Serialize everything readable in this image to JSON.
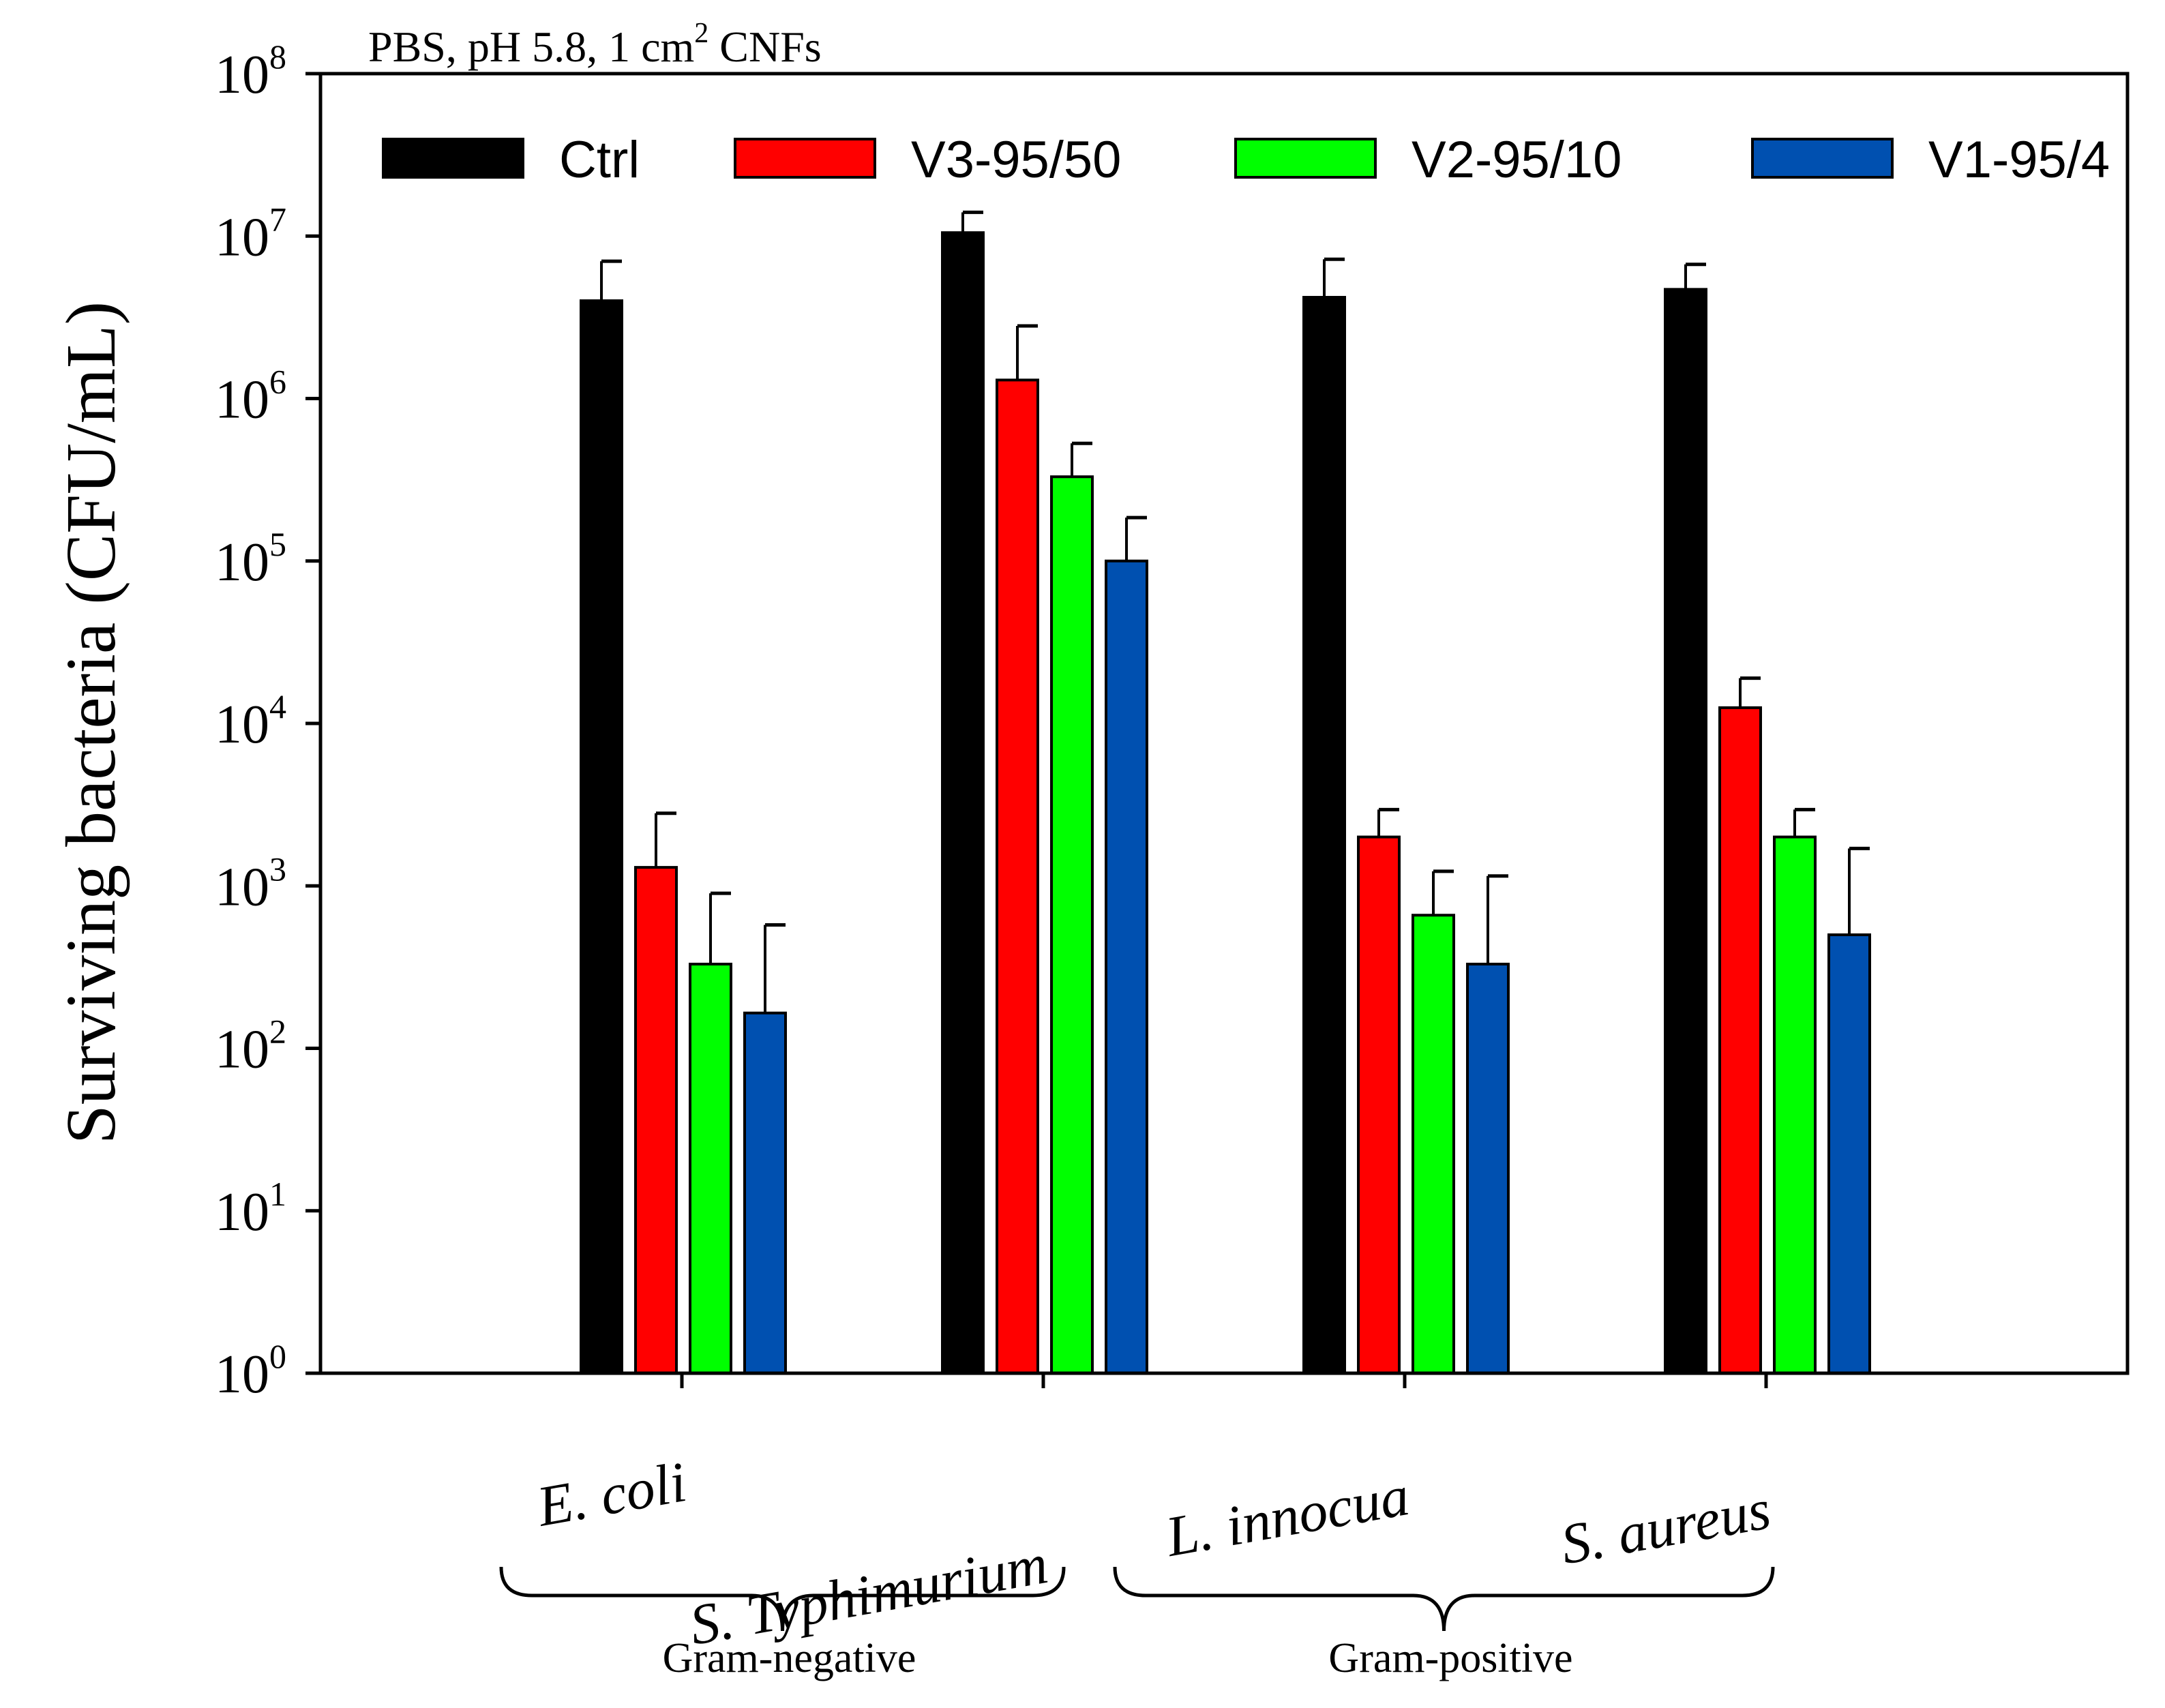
{
  "chart_data": {
    "type": "bar",
    "annotation": "PBS, pH 5.8, 1 cm",
    "annotation_sup": "2",
    "annotation_suffix": " CNFs",
    "ylabel": "Surviving bacteria (CFU/mL)",
    "xlabel": "",
    "yscale": "log",
    "ylim": [
      1,
      100000000
    ],
    "y_tick_base": "10",
    "y_tick_exponents": [
      "0",
      "1",
      "2",
      "3",
      "4",
      "5",
      "6",
      "7",
      "8"
    ],
    "categories": [
      "E. coli",
      "S. Typhimurium",
      "L. innocua",
      "S. aureus"
    ],
    "groups": [
      {
        "label": "Gram-negative",
        "categories": [
          "E. coli",
          "S. Typhimurium"
        ]
      },
      {
        "label": "Gram-positive",
        "categories": [
          "L. innocua",
          "S. aureus"
        ]
      }
    ],
    "legend_position": "top",
    "series": [
      {
        "name": "Ctrl",
        "color": "#000000",
        "values": [
          4000000,
          10500000,
          4200000,
          4700000
        ],
        "errors": [
          3000000,
          3500000,
          3000000,
          2000000
        ]
      },
      {
        "name": "V3-95/50",
        "color": "#ff0000",
        "values": [
          1300,
          1300000,
          2000,
          12500
        ],
        "errors": [
          1500,
          1500000,
          950,
          6500
        ]
      },
      {
        "name": "V2-95/10",
        "color": "#00ff00",
        "values": [
          330,
          330000,
          660,
          2000
        ],
        "errors": [
          570,
          200000,
          570,
          950
        ]
      },
      {
        "name": "V1-95/4",
        "color": "#0050b0",
        "values": [
          165,
          100000,
          330,
          500
        ],
        "errors": [
          410,
          85000,
          820,
          1200
        ]
      }
    ]
  }
}
